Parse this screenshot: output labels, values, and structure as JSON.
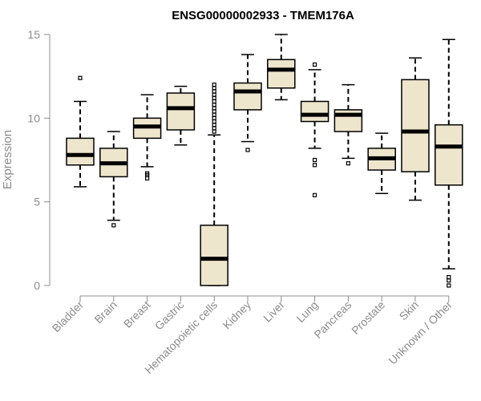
{
  "chart_data": {
    "type": "box",
    "title": "ENSG00000002933 - TMEM176A",
    "xlabel": "",
    "ylabel": "Expression",
    "ylim": [
      0,
      15
    ],
    "yticks": [
      0,
      5,
      10,
      15
    ],
    "grid": false,
    "colors": {
      "box_fill": "#ede6cd",
      "box_stroke": "#000000",
      "median": "#000000",
      "axis": "#8c8c8c"
    },
    "categories": [
      "Bladder",
      "Brain",
      "Breast",
      "Gastric",
      "Hematopoietic cells",
      "Kidney",
      "Liver",
      "Lung",
      "Pancreas",
      "Prostate",
      "Skin",
      "Unknown / Other"
    ],
    "boxes": [
      {
        "category": "Bladder",
        "whisker_low": 5.9,
        "q1": 7.2,
        "median": 7.8,
        "q3": 8.8,
        "whisker_high": 11.0,
        "outliers": [
          12.4
        ]
      },
      {
        "category": "Brain",
        "whisker_low": 3.9,
        "q1": 6.5,
        "median": 7.3,
        "q3": 8.2,
        "whisker_high": 9.2,
        "outliers": [
          3.6
        ]
      },
      {
        "category": "Breast",
        "whisker_low": 7.1,
        "q1": 8.8,
        "median": 9.5,
        "q3": 10.0,
        "whisker_high": 11.4,
        "outliers": [
          6.4,
          6.6,
          6.7
        ]
      },
      {
        "category": "Gastric",
        "whisker_low": 8.4,
        "q1": 9.3,
        "median": 10.6,
        "q3": 11.5,
        "whisker_high": 11.9,
        "outliers": []
      },
      {
        "category": "Hematopoietic cells",
        "whisker_low": 0.0,
        "q1": 0.0,
        "median": 1.6,
        "q3": 3.6,
        "whisker_high": 9.0,
        "outliers": [
          9.2,
          9.4,
          9.6,
          9.8,
          10.0,
          10.2,
          10.4,
          10.6,
          10.8,
          11.0,
          11.2,
          11.4,
          11.6,
          11.8,
          12.0
        ]
      },
      {
        "category": "Kidney",
        "whisker_low": 8.6,
        "q1": 10.5,
        "median": 11.6,
        "q3": 12.1,
        "whisker_high": 13.8,
        "outliers": [
          8.1
        ]
      },
      {
        "category": "Liver",
        "whisker_low": 11.1,
        "q1": 11.8,
        "median": 12.9,
        "q3": 13.5,
        "whisker_high": 15.0,
        "outliers": []
      },
      {
        "category": "Lung",
        "whisker_low": 8.2,
        "q1": 9.8,
        "median": 10.2,
        "q3": 11.0,
        "whisker_high": 12.9,
        "outliers": [
          13.2,
          7.5,
          7.2,
          5.4
        ]
      },
      {
        "category": "Pancreas",
        "whisker_low": 7.6,
        "q1": 9.2,
        "median": 10.2,
        "q3": 10.5,
        "whisker_high": 12.0,
        "outliers": [
          7.3
        ]
      },
      {
        "category": "Prostate",
        "whisker_low": 5.5,
        "q1": 6.9,
        "median": 7.6,
        "q3": 8.2,
        "whisker_high": 9.1,
        "outliers": []
      },
      {
        "category": "Skin",
        "whisker_low": 5.1,
        "q1": 6.8,
        "median": 9.2,
        "q3": 12.3,
        "whisker_high": 13.6,
        "outliers": []
      },
      {
        "category": "Unknown / Other",
        "whisker_low": 1.0,
        "q1": 6.0,
        "median": 8.3,
        "q3": 9.6,
        "whisker_high": 14.7,
        "outliers": [
          0.0,
          0.3,
          0.5
        ]
      }
    ]
  }
}
